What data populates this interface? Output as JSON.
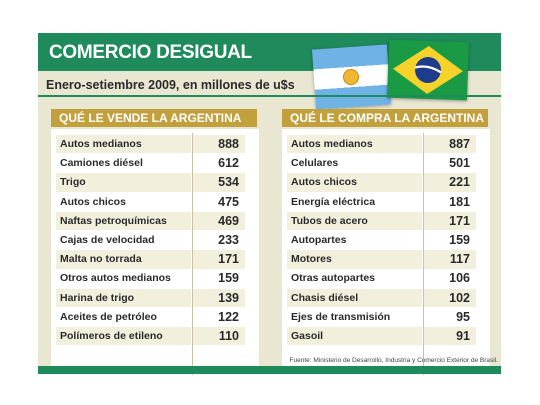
{
  "header": {
    "title": "COMERCIO DESIGUAL",
    "subtitle": "Enero-setiembre 2009, en millones de u$s"
  },
  "left_table": {
    "heading": "QUÉ LE VENDE LA ARGENTINA",
    "rows": [
      {
        "item": "Autos medianos",
        "value": "888"
      },
      {
        "item": "Camiones diésel",
        "value": "612"
      },
      {
        "item": "Trigo",
        "value": "534"
      },
      {
        "item": "Autos chicos",
        "value": "475"
      },
      {
        "item": "Naftas petroquímicas",
        "value": "469"
      },
      {
        "item": "Cajas de velocidad",
        "value": "233"
      },
      {
        "item": "Malta no torrada",
        "value": "171"
      },
      {
        "item": "Otros autos medianos",
        "value": "159"
      },
      {
        "item": "Harina de trigo",
        "value": "139"
      },
      {
        "item": "Aceites de petróleo",
        "value": "122"
      },
      {
        "item": "Polímeros de etileno",
        "value": "110"
      }
    ]
  },
  "right_table": {
    "heading": "QUÉ LE COMPRA LA ARGENTINA",
    "rows": [
      {
        "item": "Autos medianos",
        "value": "887"
      },
      {
        "item": "Celulares",
        "value": "501"
      },
      {
        "item": "Autos chicos",
        "value": "221"
      },
      {
        "item": "Energía eléctrica",
        "value": "181"
      },
      {
        "item": "Tubos de acero",
        "value": "171"
      },
      {
        "item": "Autopartes",
        "value": "159"
      },
      {
        "item": "Motores",
        "value": "117"
      },
      {
        "item": "Otras autopartes",
        "value": "106"
      },
      {
        "item": "Chasis diésel",
        "value": "102"
      },
      {
        "item": "Ejes de transmisión",
        "value": "95"
      },
      {
        "item": "Gasoil",
        "value": "91"
      }
    ]
  },
  "source": "Fuente: Ministerio de Desarrollo, Industria y Comercio Exterior de Brasil.",
  "flags": [
    "argentina-flag",
    "brazil-flag"
  ],
  "colors": {
    "accent_green": "#1f8a5c",
    "heading_gold": "#c2a13d",
    "background_beige": "#e9e6d2"
  }
}
